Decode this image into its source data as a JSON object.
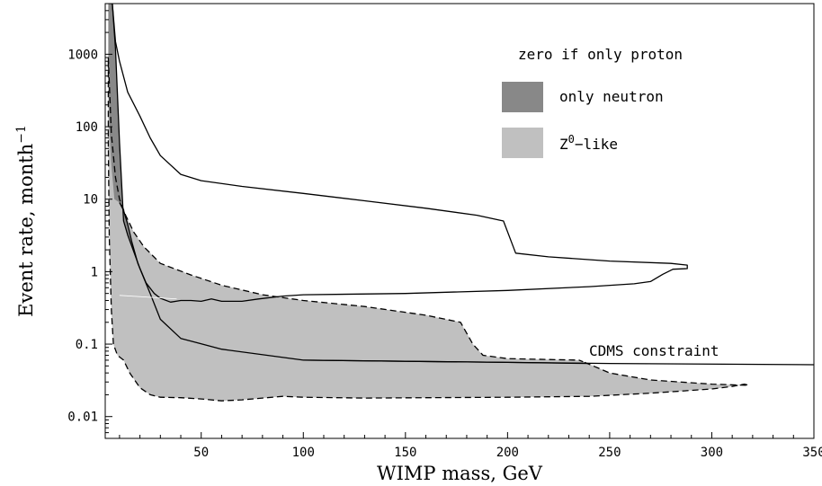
{
  "chart_data": {
    "type": "line",
    "xlabel": "WIMP mass, GeV",
    "ylabel_main": "Event rate, month",
    "ylabel_sup": "−1",
    "xlim": [
      3,
      350
    ],
    "ylim": [
      0.005,
      5000
    ],
    "yscale": "log",
    "grid": false,
    "x_ticks": [
      50,
      100,
      150,
      200,
      250,
      300,
      350
    ],
    "x_tick_labels": [
      "50",
      "100",
      "150",
      "200",
      "250",
      "300",
      "350"
    ],
    "y_ticks": [
      0.01,
      0.1,
      1,
      10,
      100,
      1000
    ],
    "y_tick_labels": [
      "0.01",
      "0.1",
      "1",
      "10",
      "100",
      "1000"
    ],
    "legend": {
      "placement": "top-right",
      "header": "zero if only proton",
      "entries": [
        {
          "label": "only neutron",
          "color": "#888888"
        },
        {
          "label_main": "Z",
          "label_sup": "0",
          "label_rest": "−like",
          "color": "#c0c0c0"
        }
      ]
    },
    "annotations": [
      {
        "text": "CDMS constraint"
      }
    ],
    "colors": {
      "only_neutron_fill": "#888888",
      "z0_like_fill": "#c0c0c0",
      "lines": "#000000"
    },
    "series": [
      {
        "role": "solid-upper-boundary",
        "points": [
          [
            6.5,
            5000
          ],
          [
            8,
            1500
          ],
          [
            10,
            800
          ],
          [
            14,
            300
          ],
          [
            20,
            140
          ],
          [
            25,
            70
          ],
          [
            30,
            40
          ],
          [
            40,
            22
          ],
          [
            50,
            18
          ],
          [
            70,
            15
          ],
          [
            100,
            12
          ],
          [
            130,
            9.5
          ],
          [
            160,
            7.5
          ],
          [
            185,
            6
          ],
          [
            198,
            5
          ],
          [
            204,
            1.8
          ],
          [
            220,
            1.6
          ],
          [
            250,
            1.4
          ],
          [
            280,
            1.3
          ],
          [
            288,
            1.23
          ],
          [
            288,
            1.1
          ],
          [
            281,
            1.08
          ],
          [
            276,
            0.92
          ],
          [
            270,
            0.73
          ],
          [
            262,
            0.68
          ],
          [
            240,
            0.62
          ],
          [
            200,
            0.55
          ],
          [
            150,
            0.5
          ],
          [
            100,
            0.48
          ],
          [
            90,
            0.46
          ],
          [
            78,
            0.42
          ],
          [
            70,
            0.39
          ],
          [
            60,
            0.39
          ],
          [
            55,
            0.42
          ],
          [
            50,
            0.39
          ],
          [
            45,
            0.4
          ],
          [
            40,
            0.4
          ],
          [
            35,
            0.38
          ],
          [
            30,
            0.43
          ],
          [
            27,
            0.5
          ],
          [
            23,
            0.7
          ],
          [
            19,
            1.3
          ],
          [
            16,
            2.6
          ],
          [
            14,
            4.5
          ],
          [
            12,
            7
          ],
          [
            10,
            9
          ]
        ]
      },
      {
        "role": "dashed-upper-boundary",
        "points": [
          [
            4.5,
            900
          ],
          [
            6,
            80
          ],
          [
            8,
            20
          ],
          [
            10,
            10
          ],
          [
            13,
            6
          ],
          [
            17,
            3.5
          ],
          [
            22,
            2.2
          ],
          [
            30,
            1.3
          ],
          [
            45,
            0.9
          ],
          [
            60,
            0.65
          ],
          [
            80,
            0.48
          ],
          [
            100,
            0.4
          ],
          [
            130,
            0.33
          ],
          [
            160,
            0.25
          ],
          [
            177,
            0.2
          ],
          [
            183,
            0.1
          ],
          [
            188,
            0.07
          ],
          [
            200,
            0.063
          ],
          [
            235,
            0.06
          ],
          [
            237,
            0.057
          ]
        ]
      },
      {
        "role": "only-neutron-region-edges",
        "points": [
          [
            6.5,
            5000
          ],
          [
            8,
            1200
          ],
          [
            10,
            60
          ],
          [
            12,
            5
          ],
          [
            14,
            3.2
          ],
          [
            20,
            1.1
          ],
          [
            25,
            0.5
          ],
          [
            30,
            0.22
          ],
          [
            40,
            0.12
          ],
          [
            60,
            0.085
          ],
          [
            100,
            0.06
          ],
          [
            200,
            0.056
          ],
          [
            240,
            0.054
          ]
        ]
      },
      {
        "role": "cdms-constraint",
        "points": [
          [
            100,
            0.06
          ],
          [
            200,
            0.056
          ],
          [
            250,
            0.054
          ],
          [
            350,
            0.052
          ]
        ]
      },
      {
        "role": "z0-like-lower-boundary",
        "points": [
          [
            4.5,
            800
          ],
          [
            4.5,
            60
          ],
          [
            5,
            3
          ],
          [
            6,
            0.3
          ],
          [
            7,
            0.1
          ],
          [
            9,
            0.07
          ],
          [
            12,
            0.06
          ],
          [
            15,
            0.04
          ],
          [
            20,
            0.025
          ],
          [
            25,
            0.02
          ],
          [
            30,
            0.0185
          ],
          [
            40,
            0.0182
          ],
          [
            50,
            0.0175
          ],
          [
            60,
            0.0165
          ],
          [
            70,
            0.017
          ],
          [
            80,
            0.018
          ],
          [
            90,
            0.019
          ],
          [
            100,
            0.0185
          ],
          [
            130,
            0.018
          ],
          [
            160,
            0.0182
          ],
          [
            200,
            0.0185
          ],
          [
            240,
            0.019
          ],
          [
            270,
            0.021
          ],
          [
            300,
            0.024
          ],
          [
            310,
            0.026
          ],
          [
            316,
            0.028
          ],
          [
            318,
            0.027
          ],
          [
            300,
            0.028
          ],
          [
            270,
            0.032
          ],
          [
            250,
            0.04
          ],
          [
            245,
            0.046
          ],
          [
            237,
            0.057
          ]
        ]
      }
    ]
  }
}
